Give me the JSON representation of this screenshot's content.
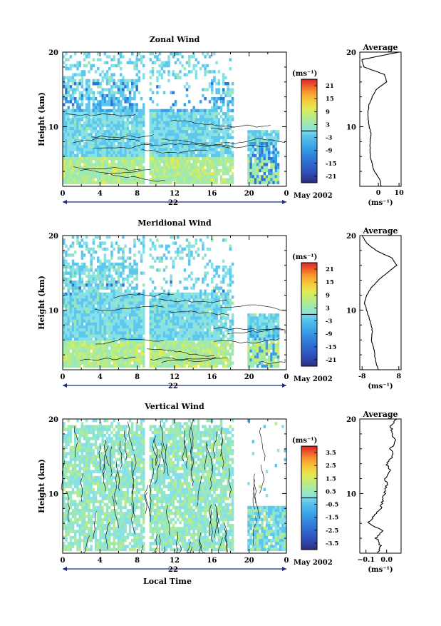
{
  "common": {
    "local_time_label": "Local Time",
    "month_label": "May 2002",
    "average_title": "Average",
    "unit_label": "(ms⁻¹)",
    "height_label": "Height (km)",
    "x_ticks": [
      "0",
      "4",
      "8",
      "12",
      "16",
      "20",
      "0"
    ],
    "y_ticks": [
      "20",
      "10"
    ],
    "colormap": [
      "#2b2f7e",
      "#2f4fb8",
      "#2f74d8",
      "#39a0e6",
      "#5dc7ee",
      "#86e0e8",
      "#9be8b8",
      "#b8ec84",
      "#e3ea54",
      "#f6c83a",
      "#f7962d",
      "#ef5a28",
      "#d9242a"
    ]
  },
  "chart_data": [
    {
      "type": "heatmap",
      "title": "Zonal Wind",
      "date_label": "22",
      "ylabel": "Height (km)",
      "xlabel": "",
      "xlim": [
        0,
        24
      ],
      "ylim": [
        2,
        20
      ],
      "colorbar": {
        "label": "(ms⁻¹)",
        "ticks": [
          "21",
          "15",
          "9",
          "3",
          "-3",
          "-9",
          "-15",
          "-21"
        ],
        "range": [
          -24,
          24
        ]
      },
      "average": {
        "title": "Average",
        "xlabel": "(ms⁻¹)",
        "x_ticks": [
          "0",
          "10"
        ],
        "xlim": [
          -9,
          11
        ],
        "height": [
          2,
          3,
          4,
          5,
          6,
          7,
          8,
          9,
          10,
          11,
          12,
          13,
          14,
          15,
          16,
          17,
          18,
          19,
          20
        ],
        "value": [
          1.5,
          0.5,
          -2,
          -3,
          -4,
          -4,
          -4,
          -3.5,
          -4.5,
          -5,
          -5,
          -4.5,
          -3,
          -1,
          4,
          3,
          -7,
          -8,
          10
        ]
      }
    },
    {
      "type": "heatmap",
      "title": "Meridional Wind",
      "date_label": "22",
      "ylabel": "Height (km)",
      "xlabel": "",
      "xlim": [
        0,
        24
      ],
      "ylim": [
        2,
        20
      ],
      "colorbar": {
        "label": "(ms⁻¹)",
        "ticks": [
          "21",
          "15",
          "9",
          "3",
          "-3",
          "-9",
          "-15",
          "-21"
        ],
        "range": [
          -24,
          24
        ]
      },
      "average": {
        "title": "Average",
        "xlabel": "(ms⁻¹)",
        "x_ticks": [
          "-8",
          "8"
        ],
        "xlim": [
          -9,
          9
        ],
        "height": [
          2,
          3,
          4,
          5,
          6,
          7,
          8,
          9,
          10,
          11,
          12,
          13,
          14,
          15,
          16,
          17,
          18,
          19,
          20
        ],
        "value": [
          -1,
          -2,
          -2.5,
          -3,
          -4,
          -3.5,
          -4,
          -5,
          -6,
          -7,
          -6,
          -4,
          -1,
          3,
          7,
          5,
          -2,
          -6,
          -8
        ]
      }
    },
    {
      "type": "heatmap",
      "title": "Vertical Wind",
      "date_label": "22",
      "ylabel": "Height (km)",
      "xlabel": "Local Time",
      "xlim": [
        0,
        24
      ],
      "ylim": [
        2,
        20
      ],
      "colorbar": {
        "label": "(ms⁻¹)",
        "ticks": [
          "3.5",
          "2.5",
          "1.5",
          "0.5",
          "-0.5",
          "-1.5",
          "-2.5",
          "-3.5"
        ],
        "range": [
          -4,
          4
        ]
      },
      "average": {
        "title": "Average",
        "xlabel": "(ms⁻¹)",
        "x_ticks": [
          "−0.1",
          "0.0"
        ],
        "xlim": [
          -0.13,
          0.07
        ],
        "height": [
          2,
          3,
          4,
          5,
          6,
          7,
          8,
          9,
          10,
          11,
          12,
          13,
          14,
          15,
          16,
          17,
          18,
          19,
          20
        ],
        "value": [
          -0.04,
          -0.03,
          -0.05,
          -0.02,
          -0.09,
          -0.06,
          -0.03,
          -0.02,
          -0.01,
          0.0,
          -0.005,
          0.02,
          0.0,
          0.03,
          0.02,
          0.04,
          0.03,
          0.02,
          0.05
        ]
      }
    }
  ]
}
